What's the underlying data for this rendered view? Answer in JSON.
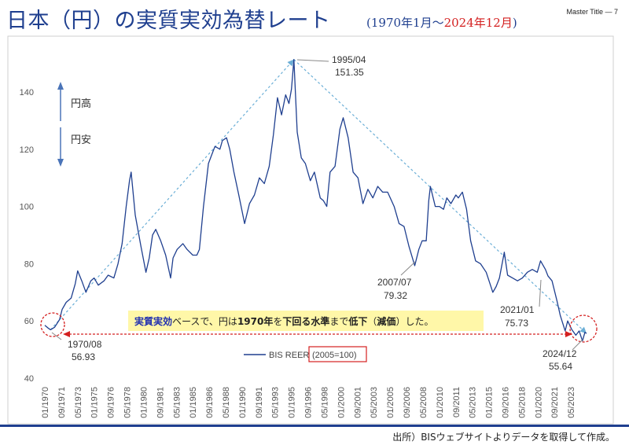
{
  "header": {
    "title": "日本（円）の実質実効為替レート",
    "subtitle_prefix": "(1970年1月～",
    "subtitle_highlight": "2024年12月",
    "subtitle_suffix": ")",
    "master_title": "Master Title — 7"
  },
  "colors": {
    "series": "#1f3f8f",
    "trend": "#6aaed6",
    "accent_red": "#d42020",
    "callout_bg": "#fff7a8",
    "bottom_bar": "#1f3f8f"
  },
  "direction_labels": {
    "up": "円高",
    "down": "円安"
  },
  "callout": {
    "part1": "実質実効",
    "part2": "ベースで、円は",
    "part3": "1970年",
    "part4": "を",
    "part5": "下回る水準",
    "part6": "まで",
    "part7": "低下",
    "part8": "（",
    "part9": "減価",
    "part10": "）した。"
  },
  "annotations": {
    "a1970_date": "1970/08",
    "a1970_value": "56.93",
    "a1995_date": "1995/04",
    "a1995_value": "151.35",
    "a2007_date": "2007/07",
    "a2007_value": "79.32",
    "a2021_date": "2021/01",
    "a2021_value": "75.73",
    "a2024_date": "2024/12",
    "a2024_value": "55.64"
  },
  "legend": {
    "series_label": "BIS REER",
    "base_label": "(2005=100)"
  },
  "source_note": "出所）BISウェブサイトよりデータを取得して作成。",
  "chart_data": {
    "type": "line",
    "title": "日本（円）の実質実効為替レート",
    "ylim": [
      40,
      150
    ],
    "yticks": [
      40,
      60,
      80,
      100,
      120,
      140
    ],
    "xlim": [
      "1970-01",
      "2024-12"
    ],
    "xtick_labels": [
      "01/1970",
      "09/1971",
      "05/1973",
      "01/1975",
      "09/1976",
      "05/1978",
      "01/1980",
      "09/1981",
      "05/1983",
      "01/1985",
      "09/1986",
      "05/1988",
      "01/1990",
      "09/1991",
      "05/1993",
      "01/1995",
      "09/1996",
      "05/1998",
      "01/2000",
      "09/2001",
      "05/2003",
      "01/2005",
      "09/2006",
      "05/2008",
      "01/2010",
      "09/2011",
      "05/2013",
      "01/2015",
      "09/2016",
      "05/2018",
      "01/2020",
      "09/2021",
      "05/2023"
    ],
    "grid": false,
    "series": [
      {
        "name": "BIS REER",
        "points": [
          [
            "1970-01",
            58.5
          ],
          [
            "1970-05",
            57.5
          ],
          [
            "1970-08",
            56.93
          ],
          [
            "1971-01",
            57.8
          ],
          [
            "1971-07",
            60.5
          ],
          [
            "1971-10",
            64
          ],
          [
            "1972-03",
            66.5
          ],
          [
            "1972-09",
            68
          ],
          [
            "1973-02",
            73
          ],
          [
            "1973-05",
            77.5
          ],
          [
            "1973-10",
            74
          ],
          [
            "1974-03",
            70
          ],
          [
            "1974-09",
            74
          ],
          [
            "1975-01",
            75
          ],
          [
            "1975-06",
            72.5
          ],
          [
            "1976-01",
            74
          ],
          [
            "1976-06",
            76
          ],
          [
            "1977-01",
            75
          ],
          [
            "1977-06",
            80
          ],
          [
            "1977-11",
            87
          ],
          [
            "1978-04",
            100
          ],
          [
            "1978-08",
            109
          ],
          [
            "1978-10",
            112
          ],
          [
            "1979-03",
            97
          ],
          [
            "1979-10",
            86
          ],
          [
            "1980-04",
            77
          ],
          [
            "1980-08",
            82
          ],
          [
            "1980-12",
            90
          ],
          [
            "1981-04",
            92
          ],
          [
            "1981-10",
            88
          ],
          [
            "1982-04",
            83
          ],
          [
            "1982-10",
            75
          ],
          [
            "1983-01",
            82
          ],
          [
            "1983-06",
            85
          ],
          [
            "1984-01",
            87
          ],
          [
            "1984-06",
            85
          ],
          [
            "1985-01",
            83
          ],
          [
            "1985-06",
            83
          ],
          [
            "1985-09",
            85
          ],
          [
            "1986-02",
            100
          ],
          [
            "1986-08",
            115
          ],
          [
            "1986-12",
            118
          ],
          [
            "1987-04",
            121
          ],
          [
            "1987-10",
            120
          ],
          [
            "1988-01",
            123
          ],
          [
            "1988-06",
            124
          ],
          [
            "1988-10",
            120
          ],
          [
            "1989-03",
            112
          ],
          [
            "1989-09",
            104
          ],
          [
            "1990-04",
            94
          ],
          [
            "1990-10",
            101
          ],
          [
            "1991-04",
            104
          ],
          [
            "1991-10",
            110
          ],
          [
            "1992-04",
            108
          ],
          [
            "1992-10",
            114
          ],
          [
            "1993-03",
            125
          ],
          [
            "1993-08",
            138
          ],
          [
            "1994-01",
            132
          ],
          [
            "1994-06",
            139
          ],
          [
            "1994-10",
            136
          ],
          [
            "1995-01",
            141
          ],
          [
            "1995-04",
            151.35
          ],
          [
            "1995-08",
            126
          ],
          [
            "1996-01",
            117
          ],
          [
            "1996-06",
            115
          ],
          [
            "1996-12",
            109
          ],
          [
            "1997-05",
            112
          ],
          [
            "1997-12",
            103
          ],
          [
            "1998-04",
            102
          ],
          [
            "1998-08",
            100
          ],
          [
            "1998-12",
            112
          ],
          [
            "1999-06",
            114
          ],
          [
            "1999-12",
            127
          ],
          [
            "2000-04",
            131
          ],
          [
            "2000-10",
            124
          ],
          [
            "2001-04",
            112
          ],
          [
            "2001-10",
            110
          ],
          [
            "2002-04",
            101
          ],
          [
            "2002-10",
            106
          ],
          [
            "2003-04",
            103
          ],
          [
            "2003-10",
            107
          ],
          [
            "2004-04",
            105
          ],
          [
            "2004-10",
            105
          ],
          [
            "2005-06",
            100
          ],
          [
            "2005-12",
            94
          ],
          [
            "2006-06",
            93
          ],
          [
            "2006-12",
            86
          ],
          [
            "2007-07",
            79.32
          ],
          [
            "2007-12",
            85
          ],
          [
            "2008-04",
            88
          ],
          [
            "2008-09",
            88
          ],
          [
            "2008-12",
            102
          ],
          [
            "2009-02",
            107
          ],
          [
            "2009-08",
            100
          ],
          [
            "2010-01",
            100
          ],
          [
            "2010-06",
            99
          ],
          [
            "2010-10",
            103
          ],
          [
            "2011-03",
            101
          ],
          [
            "2011-09",
            104
          ],
          [
            "2011-12",
            103
          ],
          [
            "2012-05",
            105
          ],
          [
            "2012-10",
            99
          ],
          [
            "2013-03",
            88
          ],
          [
            "2013-09",
            81
          ],
          [
            "2014-03",
            80
          ],
          [
            "2014-10",
            77
          ],
          [
            "2015-06",
            70
          ],
          [
            "2015-10",
            72
          ],
          [
            "2016-02",
            75
          ],
          [
            "2016-08",
            84
          ],
          [
            "2016-12",
            76
          ],
          [
            "2017-06",
            75
          ],
          [
            "2017-12",
            74
          ],
          [
            "2018-06",
            75
          ],
          [
            "2018-12",
            77
          ],
          [
            "2019-06",
            78
          ],
          [
            "2019-12",
            77
          ],
          [
            "2020-04",
            81
          ],
          [
            "2020-10",
            78
          ],
          [
            "2021-01",
            75.73
          ],
          [
            "2021-06",
            74
          ],
          [
            "2021-12",
            67
          ],
          [
            "2022-04",
            62
          ],
          [
            "2022-10",
            56.5
          ],
          [
            "2023-01",
            60
          ],
          [
            "2023-06",
            57
          ],
          [
            "2023-11",
            55
          ],
          [
            "2024-03",
            56.5
          ],
          [
            "2024-07",
            53
          ],
          [
            "2024-10",
            56
          ],
          [
            "2024-12",
            55.64
          ]
        ]
      }
    ],
    "trend_lines": [
      {
        "from": [
          "1970-08",
          56.93
        ],
        "to": [
          "1995-04",
          151.35
        ]
      },
      {
        "from": [
          "1995-04",
          151.35
        ],
        "to": [
          "2024-12",
          55.64
        ]
      }
    ]
  }
}
